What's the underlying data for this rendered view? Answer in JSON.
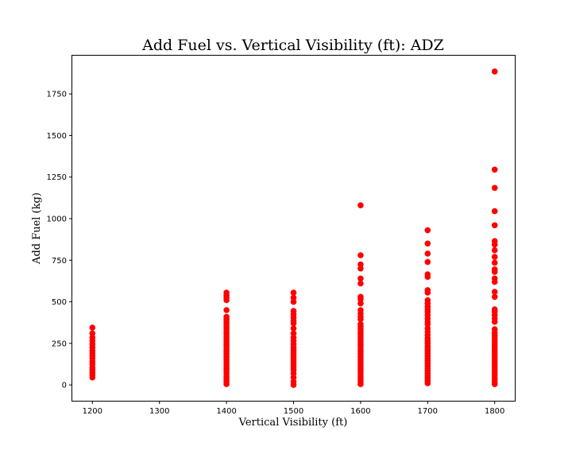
{
  "chart_data": {
    "type": "scatter",
    "title": "Add Fuel vs. Vertical Visibility (ft): ADZ",
    "xlabel": "Vertical Visibility (ft)",
    "ylabel": "Add Fuel (kg)",
    "xlim": [
      1170,
      1830
    ],
    "ylim": [
      -95,
      1980
    ],
    "xticks": [
      1200,
      1300,
      1400,
      1500,
      1600,
      1700,
      1800
    ],
    "yticks": [
      0,
      250,
      500,
      750,
      1000,
      1250,
      1500,
      1750
    ],
    "grid": false,
    "marker_color": "#ff0000",
    "series": [
      {
        "points": [
          [
            1200,
            345
          ],
          [
            1200,
            310
          ],
          [
            1200,
            285
          ],
          [
            1200,
            265
          ],
          [
            1200,
            245
          ],
          [
            1200,
            225
          ],
          [
            1200,
            205
          ],
          [
            1200,
            190
          ],
          [
            1200,
            175
          ],
          [
            1200,
            160
          ],
          [
            1200,
            140
          ],
          [
            1200,
            125
          ],
          [
            1200,
            105
          ],
          [
            1200,
            90
          ],
          [
            1200,
            75
          ],
          [
            1200,
            60
          ],
          [
            1200,
            45
          ],
          [
            1400,
            555
          ],
          [
            1400,
            540
          ],
          [
            1400,
            525
          ],
          [
            1400,
            510
          ],
          [
            1400,
            450
          ],
          [
            1400,
            410
          ],
          [
            1400,
            395
          ],
          [
            1400,
            380
          ],
          [
            1400,
            365
          ],
          [
            1400,
            350
          ],
          [
            1400,
            335
          ],
          [
            1400,
            320
          ],
          [
            1400,
            305
          ],
          [
            1400,
            290
          ],
          [
            1400,
            275
          ],
          [
            1400,
            260
          ],
          [
            1400,
            245
          ],
          [
            1400,
            230
          ],
          [
            1400,
            215
          ],
          [
            1400,
            200
          ],
          [
            1400,
            185
          ],
          [
            1400,
            170
          ],
          [
            1400,
            155
          ],
          [
            1400,
            140
          ],
          [
            1400,
            125
          ],
          [
            1400,
            110
          ],
          [
            1400,
            95
          ],
          [
            1400,
            80
          ],
          [
            1400,
            65
          ],
          [
            1400,
            50
          ],
          [
            1400,
            35
          ],
          [
            1400,
            20
          ],
          [
            1400,
            5
          ],
          [
            1500,
            555
          ],
          [
            1500,
            525
          ],
          [
            1500,
            500
          ],
          [
            1500,
            445
          ],
          [
            1500,
            425
          ],
          [
            1500,
            405
          ],
          [
            1500,
            385
          ],
          [
            1500,
            370
          ],
          [
            1500,
            340
          ],
          [
            1500,
            310
          ],
          [
            1500,
            285
          ],
          [
            1500,
            265
          ],
          [
            1500,
            245
          ],
          [
            1500,
            225
          ],
          [
            1500,
            210
          ],
          [
            1500,
            195
          ],
          [
            1500,
            180
          ],
          [
            1500,
            165
          ],
          [
            1500,
            150
          ],
          [
            1500,
            135
          ],
          [
            1500,
            120
          ],
          [
            1500,
            105
          ],
          [
            1500,
            90
          ],
          [
            1500,
            70
          ],
          [
            1500,
            45
          ],
          [
            1500,
            20
          ],
          [
            1500,
            0
          ],
          [
            1600,
            1080
          ],
          [
            1600,
            780
          ],
          [
            1600,
            725
          ],
          [
            1600,
            700
          ],
          [
            1600,
            640
          ],
          [
            1600,
            610
          ],
          [
            1600,
            530
          ],
          [
            1600,
            515
          ],
          [
            1600,
            490
          ],
          [
            1600,
            450
          ],
          [
            1600,
            430
          ],
          [
            1600,
            410
          ],
          [
            1600,
            395
          ],
          [
            1600,
            365
          ],
          [
            1600,
            350
          ],
          [
            1600,
            335
          ],
          [
            1600,
            320
          ],
          [
            1600,
            305
          ],
          [
            1600,
            290
          ],
          [
            1600,
            275
          ],
          [
            1600,
            260
          ],
          [
            1600,
            245
          ],
          [
            1600,
            230
          ],
          [
            1600,
            215
          ],
          [
            1600,
            200
          ],
          [
            1600,
            185
          ],
          [
            1600,
            170
          ],
          [
            1600,
            155
          ],
          [
            1600,
            140
          ],
          [
            1600,
            125
          ],
          [
            1600,
            110
          ],
          [
            1600,
            95
          ],
          [
            1600,
            80
          ],
          [
            1600,
            65
          ],
          [
            1600,
            50
          ],
          [
            1600,
            35
          ],
          [
            1600,
            20
          ],
          [
            1600,
            5
          ],
          [
            1700,
            930
          ],
          [
            1700,
            850
          ],
          [
            1700,
            790
          ],
          [
            1700,
            740
          ],
          [
            1700,
            665
          ],
          [
            1700,
            650
          ],
          [
            1700,
            570
          ],
          [
            1700,
            555
          ],
          [
            1700,
            510
          ],
          [
            1700,
            490
          ],
          [
            1700,
            470
          ],
          [
            1700,
            455
          ],
          [
            1700,
            440
          ],
          [
            1700,
            420
          ],
          [
            1700,
            400
          ],
          [
            1700,
            380
          ],
          [
            1700,
            365
          ],
          [
            1700,
            340
          ],
          [
            1700,
            320
          ],
          [
            1700,
            300
          ],
          [
            1700,
            280
          ],
          [
            1700,
            265
          ],
          [
            1700,
            250
          ],
          [
            1700,
            235
          ],
          [
            1700,
            220
          ],
          [
            1700,
            205
          ],
          [
            1700,
            190
          ],
          [
            1700,
            175
          ],
          [
            1700,
            160
          ],
          [
            1700,
            145
          ],
          [
            1700,
            130
          ],
          [
            1700,
            115
          ],
          [
            1700,
            100
          ],
          [
            1700,
            85
          ],
          [
            1700,
            70
          ],
          [
            1700,
            55
          ],
          [
            1700,
            40
          ],
          [
            1700,
            25
          ],
          [
            1700,
            10
          ],
          [
            1800,
            1885
          ],
          [
            1800,
            1295
          ],
          [
            1800,
            1185
          ],
          [
            1800,
            1045
          ],
          [
            1800,
            960
          ],
          [
            1800,
            865
          ],
          [
            1800,
            845
          ],
          [
            1800,
            810
          ],
          [
            1800,
            770
          ],
          [
            1800,
            735
          ],
          [
            1800,
            695
          ],
          [
            1800,
            680
          ],
          [
            1800,
            640
          ],
          [
            1800,
            620
          ],
          [
            1800,
            560
          ],
          [
            1800,
            530
          ],
          [
            1800,
            455
          ],
          [
            1800,
            440
          ],
          [
            1800,
            420
          ],
          [
            1800,
            400
          ],
          [
            1800,
            380
          ],
          [
            1800,
            335
          ],
          [
            1800,
            315
          ],
          [
            1800,
            300
          ],
          [
            1800,
            285
          ],
          [
            1800,
            270
          ],
          [
            1800,
            255
          ],
          [
            1800,
            240
          ],
          [
            1800,
            225
          ],
          [
            1800,
            210
          ],
          [
            1800,
            195
          ],
          [
            1800,
            180
          ],
          [
            1800,
            165
          ],
          [
            1800,
            150
          ],
          [
            1800,
            135
          ],
          [
            1800,
            120
          ],
          [
            1800,
            105
          ],
          [
            1800,
            90
          ],
          [
            1800,
            75
          ],
          [
            1800,
            60
          ],
          [
            1800,
            45
          ],
          [
            1800,
            30
          ],
          [
            1800,
            15
          ],
          [
            1800,
            5
          ]
        ]
      }
    ]
  }
}
